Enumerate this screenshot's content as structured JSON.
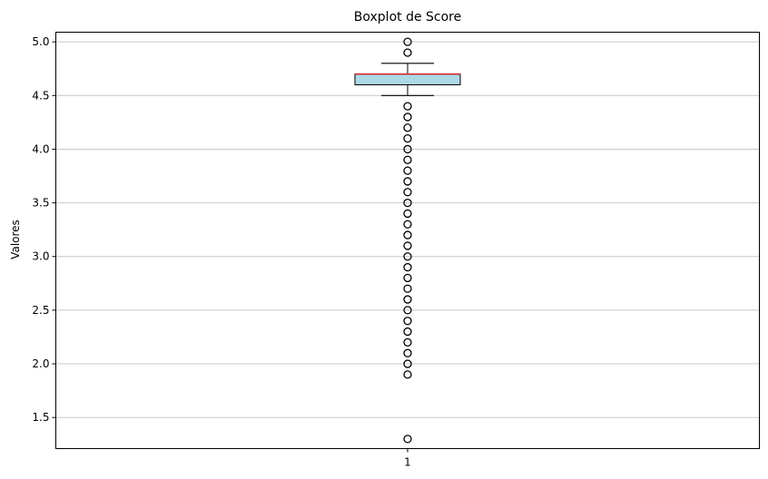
{
  "chart_data": {
    "type": "boxplot",
    "title": "Boxplot de Score",
    "xlabel": "",
    "ylabel": "Valores",
    "categories": [
      "1"
    ],
    "ylim": [
      1.21,
      5.09
    ],
    "yticks": [
      "1.5",
      "2.0",
      "2.5",
      "3.0",
      "3.5",
      "4.0",
      "4.5",
      "5.0"
    ],
    "grid": "y",
    "box": {
      "q1": 4.6,
      "median": 4.7,
      "q3": 4.7,
      "whisker_low": 4.5,
      "whisker_high": 4.8
    },
    "outliers_low": [
      1.3,
      1.9,
      2.0,
      2.1,
      2.2,
      2.3,
      2.4,
      2.5,
      2.6,
      2.7,
      2.8,
      2.9,
      3.0,
      3.1,
      3.2,
      3.3,
      3.4,
      3.5,
      3.6,
      3.7,
      3.8,
      3.9,
      4.0,
      4.1,
      4.2,
      4.3,
      4.4
    ],
    "outliers_high": [
      4.9,
      5.0
    ],
    "colors": {
      "box_fill": "#add8e6",
      "median": "#d62728",
      "grid": "#c8c8c8"
    }
  }
}
